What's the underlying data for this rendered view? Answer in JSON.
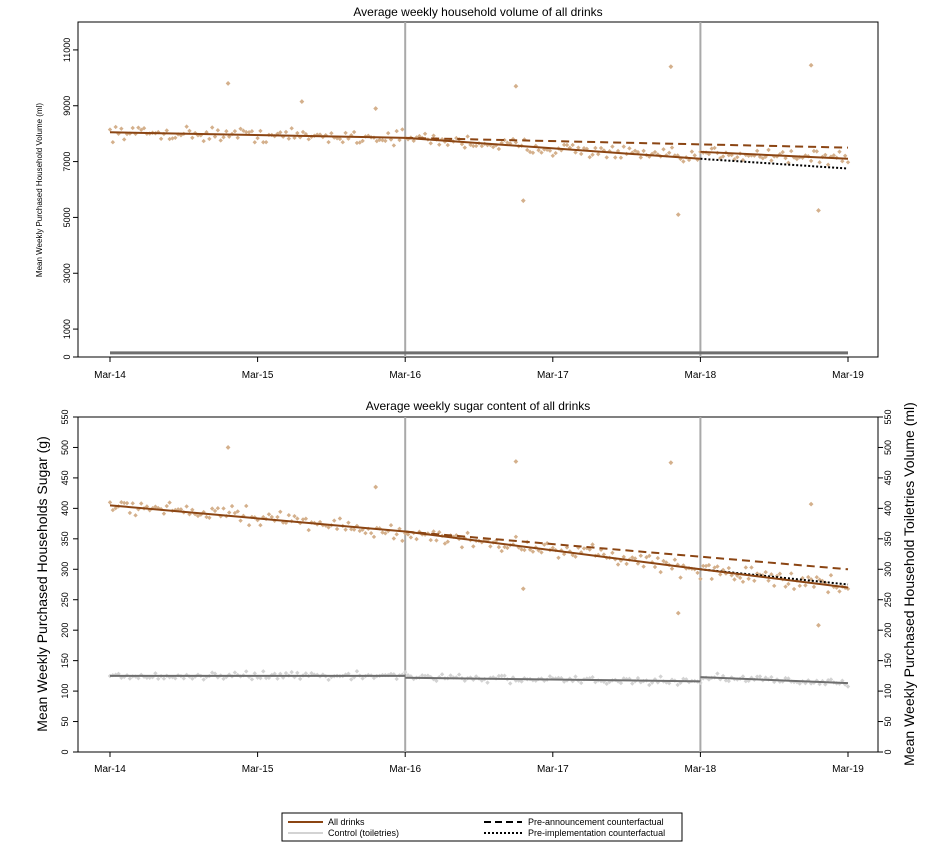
{
  "colors": {
    "drinks": "#8B4513",
    "drinks_points": "#D4B08C",
    "control": "#6E6E6E",
    "control_points": "#D3D3D3",
    "period_line": "#A9A9A9"
  },
  "legend": {
    "all_drinks": "All drinks",
    "control": "Control (toiletries)",
    "pre_announcement": "Pre-announcement counterfactual",
    "pre_implementation": "Pre-implementation counterfactual"
  },
  "chart_data": [
    {
      "type": "scatter",
      "title": "Average weekly household volume of all drinks",
      "ylabel": "Mean Weekly Purchased Household Volume (ml)",
      "x_ticks": [
        "Mar-14",
        "Mar-15",
        "Mar-16",
        "Mar-17",
        "Mar-18",
        "Mar-19"
      ],
      "x_range": [
        0,
        5
      ],
      "ylim": [
        0,
        12000
      ],
      "y_ticks": [
        "0",
        "1000",
        "3000",
        "5000",
        "7000",
        "9000",
        "11000"
      ],
      "period_lines_x": [
        2,
        4
      ],
      "drinks_trend": [
        {
          "x0": 0,
          "y0": 8050,
          "x1": 2,
          "y1": 7850
        },
        {
          "x0": 2,
          "y0": 7850,
          "x1": 4,
          "y1": 7100
        },
        {
          "x0": 4,
          "y0": 7350,
          "x1": 5,
          "y1": 7100
        }
      ],
      "pre_announcement_counterfactual": {
        "x0": 2,
        "y0": 7850,
        "x1": 5,
        "y1": 7500
      },
      "pre_implementation_counterfactual": {
        "x0": 4,
        "y0": 7100,
        "x1": 5,
        "y1": 6750
      },
      "control_level": 150,
      "drinks_weekly_center": 7900,
      "drinks_weekly_spread": 380,
      "outliers": [
        {
          "x": 0.8,
          "y": 9800
        },
        {
          "x": 1.3,
          "y": 9150
        },
        {
          "x": 1.8,
          "y": 8900
        },
        {
          "x": 2.75,
          "y": 9700
        },
        {
          "x": 2.8,
          "y": 5600
        },
        {
          "x": 3.8,
          "y": 10400
        },
        {
          "x": 3.85,
          "y": 5100
        },
        {
          "x": 4.75,
          "y": 10450
        },
        {
          "x": 4.8,
          "y": 5250
        }
      ]
    },
    {
      "type": "scatter",
      "title": "Average weekly sugar content of all drinks",
      "ylabel": "Mean Weekly Purchased Households Sugar (g)",
      "ylabel_right": "Mean Weekly Purchased Household Toiletries Volume (ml)",
      "x_ticks": [
        "Mar-14",
        "Mar-15",
        "Mar-16",
        "Mar-17",
        "Mar-18",
        "Mar-19"
      ],
      "x_range": [
        0,
        5
      ],
      "ylim": [
        0,
        550
      ],
      "y_ticks": [
        "0",
        "50",
        "100",
        "150",
        "200",
        "250",
        "300",
        "350",
        "400",
        "450",
        "500",
        "550"
      ],
      "period_lines_x": [
        2,
        4
      ],
      "drinks_trend": [
        {
          "x0": 0,
          "y0": 405,
          "x1": 2,
          "y1": 362
        },
        {
          "x0": 2,
          "y0": 362,
          "x1": 4,
          "y1": 300
        },
        {
          "x0": 4,
          "y0": 300,
          "x1": 5,
          "y1": 270
        }
      ],
      "control_trend": [
        {
          "x0": 0,
          "y0": 125,
          "x1": 2,
          "y1": 125
        },
        {
          "x0": 2,
          "y0": 122,
          "x1": 4,
          "y1": 116
        },
        {
          "x0": 4,
          "y0": 123,
          "x1": 5,
          "y1": 113
        }
      ],
      "pre_announcement_counterfactual": {
        "x0": 2,
        "y0": 362,
        "x1": 5,
        "y1": 300
      },
      "pre_implementation_counterfactual": {
        "x0": 4,
        "y0": 300,
        "x1": 5,
        "y1": 275
      },
      "drinks_weekly_spread": 22,
      "control_weekly_spread": 9,
      "outliers": [
        {
          "x": 0.8,
          "y": 500
        },
        {
          "x": 1.8,
          "y": 435
        },
        {
          "x": 2.75,
          "y": 477
        },
        {
          "x": 2.8,
          "y": 268
        },
        {
          "x": 3.8,
          "y": 475
        },
        {
          "x": 3.85,
          "y": 228
        },
        {
          "x": 4.75,
          "y": 407
        },
        {
          "x": 4.8,
          "y": 208
        }
      ]
    }
  ]
}
